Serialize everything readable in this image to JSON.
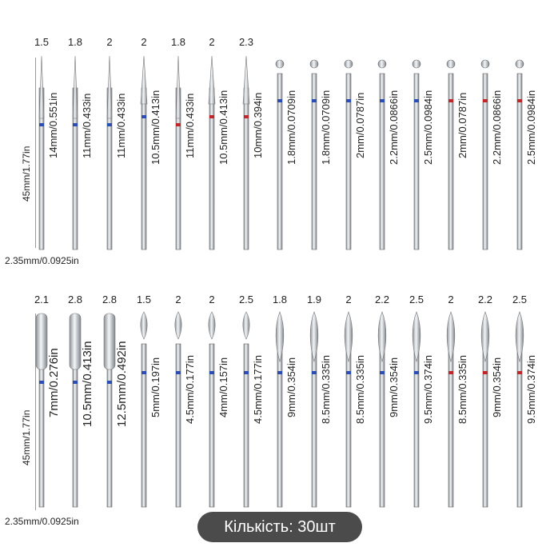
{
  "rows": [
    {
      "length_label": "45mm/1.77in",
      "shank_label": "2.35mm/0.0925in",
      "bits": [
        {
          "tip": "1.5",
          "size": "14mm/0.551in",
          "shape": "needle",
          "band": "blue"
        },
        {
          "tip": "1.8",
          "size": "11mm/0.433in",
          "shape": "needle",
          "band": "blue"
        },
        {
          "tip": "2",
          "size": "11mm/0.433in",
          "shape": "needle",
          "band": "blue"
        },
        {
          "tip": "2",
          "size": "10.5mm/0.413in",
          "shape": "cone",
          "band": "blue"
        },
        {
          "tip": "1.8",
          "size": "11mm/0.433in",
          "shape": "needle",
          "band": "red"
        },
        {
          "tip": "2",
          "size": "10.5mm/0.413in",
          "shape": "cone",
          "band": "red"
        },
        {
          "tip": "2.3",
          "size": "10mm/0.394in",
          "shape": "cone",
          "band": "red"
        },
        {
          "tip": "",
          "size": "1.8mm/0.0709in",
          "shape": "ball",
          "band": "blue"
        },
        {
          "tip": "",
          "size": "1.8mm/0.0709in",
          "shape": "ball",
          "band": "blue"
        },
        {
          "tip": "",
          "size": "2mm/0.0787in",
          "shape": "ball",
          "band": "blue"
        },
        {
          "tip": "",
          "size": "2.2mm/0.0866in",
          "shape": "ball",
          "band": "blue"
        },
        {
          "tip": "",
          "size": "2.5mm/0.0984in",
          "shape": "ball",
          "band": "blue"
        },
        {
          "tip": "",
          "size": "2mm/0.0787in",
          "shape": "ball",
          "band": "red"
        },
        {
          "tip": "",
          "size": "2.2mm/0.0866in",
          "shape": "ball",
          "band": "red"
        },
        {
          "tip": "",
          "size": "2.5mm/0.0984in",
          "shape": "ball",
          "band": "red"
        }
      ]
    },
    {
      "length_label": "45mm/1.77in",
      "shank_label": "2.35mm/0.0925in",
      "bits": [
        {
          "tip": "2.1",
          "size": "7mm/0.276in",
          "shape": "cylinder",
          "band": "blue"
        },
        {
          "tip": "2.8",
          "size": "10.5mm/0.413in",
          "shape": "cylinder",
          "band": "blue"
        },
        {
          "tip": "2.8",
          "size": "12.5mm/0.492in",
          "shape": "cylinder",
          "band": "blue"
        },
        {
          "tip": "1.5",
          "size": "5mm/0.197in",
          "shape": "bud",
          "band": "blue"
        },
        {
          "tip": "2",
          "size": "4.5mm/0.177in",
          "shape": "bud",
          "band": "blue"
        },
        {
          "tip": "2",
          "size": "4mm/0.157in",
          "shape": "bud",
          "band": "blue"
        },
        {
          "tip": "2.5",
          "size": "4.5mm/0.177in",
          "shape": "bud",
          "band": "blue"
        },
        {
          "tip": "1.8",
          "size": "9mm/0.354in",
          "shape": "flame",
          "band": "blue"
        },
        {
          "tip": "1.9",
          "size": "8.5mm/0.335in",
          "shape": "flame",
          "band": "blue"
        },
        {
          "tip": "2",
          "size": "8.5mm/0.335in",
          "shape": "flame",
          "band": "blue"
        },
        {
          "tip": "2.2",
          "size": "9mm/0.354in",
          "shape": "flame",
          "band": "blue"
        },
        {
          "tip": "2.5",
          "size": "9.5mm/0.374in",
          "shape": "flame",
          "band": "blue"
        },
        {
          "tip": "2",
          "size": "8.5mm/0.335in",
          "shape": "flame",
          "band": "red"
        },
        {
          "tip": "2.2",
          "size": "9mm/0.354in",
          "shape": "flame",
          "band": "red"
        },
        {
          "tip": "2.5",
          "size": "9.5mm/0.374in",
          "shape": "flame",
          "band": "red"
        }
      ]
    }
  ],
  "quantity_label": "Кількість: 30шт",
  "colors": {
    "blue_band": "#2a4fb0",
    "red_band": "#c0262a",
    "steel": "#b9bec4"
  }
}
